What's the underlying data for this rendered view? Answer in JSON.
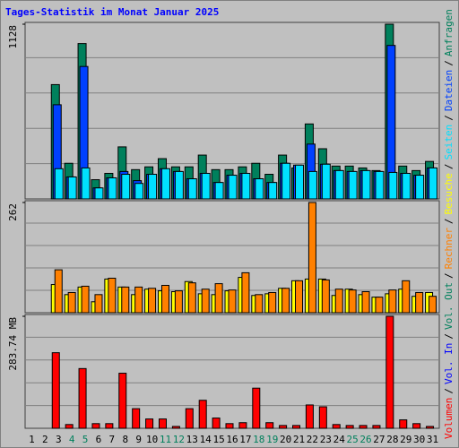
{
  "title": "Tages-Statistik im Monat Januar 2025",
  "title_color": "#0000ff",
  "legend_separator": "/",
  "chart_data": [
    {
      "type": "bar",
      "ylim": [
        0,
        1128
      ],
      "yticks": [
        1128
      ],
      "series": [
        {
          "name": "Anfragen",
          "color": "#00805c",
          "values": [
            0,
            0,
            738,
            230,
            1003,
            124,
            165,
            336,
            189,
            207,
            260,
            207,
            207,
            283,
            189,
            189,
            207,
            230,
            159,
            283,
            200,
            484,
            324,
            212,
            212,
            200,
            183,
            1128,
            212,
            183,
            242
          ]
        },
        {
          "name": "Dateien",
          "color": "#0040ff",
          "values": [
            0,
            0,
            608,
            142,
            855,
            71,
            136,
            177,
            118,
            159,
            195,
            177,
            130,
            165,
            106,
            153,
            165,
            130,
            106,
            230,
            218,
            354,
            224,
            183,
            177,
            183,
            177,
            991,
            165,
            153,
            200
          ]
        },
        {
          "name": "Seiten",
          "color": "#00e0ff",
          "values": [
            0,
            0,
            195,
            142,
            200,
            71,
            136,
            159,
            100,
            159,
            195,
            177,
            130,
            165,
            106,
            153,
            165,
            130,
            106,
            230,
            218,
            177,
            224,
            183,
            177,
            183,
            177,
            171,
            165,
            153,
            200
          ]
        }
      ]
    },
    {
      "type": "bar",
      "ylim": [
        0,
        262
      ],
      "yticks": [
        262
      ],
      "series": [
        {
          "name": "Besuche",
          "color": "#ffff00",
          "values": [
            0,
            0,
            67,
            43,
            61,
            26,
            80,
            61,
            43,
            56,
            52,
            50,
            74,
            45,
            43,
            52,
            84,
            41,
            45,
            58,
            76,
            80,
            80,
            41,
            56,
            43,
            37,
            45,
            56,
            39,
            48
          ]
        },
        {
          "name": "Rechner",
          "color": "#ff8000",
          "values": [
            0,
            0,
            102,
            48,
            63,
            43,
            82,
            61,
            61,
            58,
            65,
            52,
            71,
            56,
            69,
            54,
            95,
            43,
            48,
            58,
            76,
            262,
            78,
            56,
            54,
            50,
            37,
            54,
            76,
            48,
            39
          ]
        }
      ]
    },
    {
      "type": "bar",
      "ylim": [
        0,
        283.74
      ],
      "yticks": [
        {
          "value": 283.74,
          "label": "283.74 MB"
        }
      ],
      "categories": [
        "1",
        "2",
        "3",
        "4",
        "5",
        "6",
        "7",
        "8",
        "9",
        "10",
        "11",
        "12",
        "13",
        "14",
        "15",
        "16",
        "17",
        "18",
        "19",
        "20",
        "21",
        "22",
        "23",
        "24",
        "25",
        "26",
        "27",
        "28",
        "29",
        "30",
        "31"
      ],
      "category_colors": [
        "#000000",
        "#000000",
        "#000000",
        "#00805c",
        "#00805c",
        "#000000",
        "#000000",
        "#000000",
        "#000000",
        "#000000",
        "#00805c",
        "#00805c",
        "#000000",
        "#000000",
        "#000000",
        "#000000",
        "#000000",
        "#00805c",
        "#00805c",
        "#000000",
        "#000000",
        "#000000",
        "#000000",
        "#000000",
        "#00805c",
        "#00805c",
        "#000000",
        "#000000",
        "#000000",
        "#000000",
        "#000000"
      ],
      "series": [
        {
          "name": "Volumen",
          "color": "#ff0000",
          "values": [
            0,
            0,
            191.5,
            9.5,
            151.3,
            11.8,
            11.8,
            139.5,
            49.7,
            23.6,
            23.6,
            4.7,
            49.7,
            70.9,
            26,
            11.8,
            14.2,
            101.7,
            14.2,
            7.1,
            7.1,
            59.1,
            54.4,
            9.5,
            7.1,
            7.1,
            7.1,
            283.74,
            21.3,
            11.8,
            4.7
          ]
        },
        {
          "name": "Vol. In",
          "color": "#0000ff",
          "values": [
            null,
            null,
            null,
            null,
            null,
            null,
            null,
            null,
            null,
            null,
            null,
            null,
            null,
            null,
            null,
            null,
            null,
            null,
            null,
            null,
            null,
            null,
            null,
            null,
            null,
            null,
            null,
            null,
            null,
            null,
            null
          ]
        },
        {
          "name": "Vol. Out",
          "color": "#00805c",
          "values": [
            null,
            null,
            null,
            null,
            null,
            null,
            null,
            null,
            null,
            null,
            null,
            null,
            null,
            null,
            null,
            null,
            null,
            null,
            null,
            null,
            null,
            null,
            null,
            null,
            null,
            null,
            null,
            null,
            null,
            null,
            null
          ]
        }
      ]
    }
  ]
}
